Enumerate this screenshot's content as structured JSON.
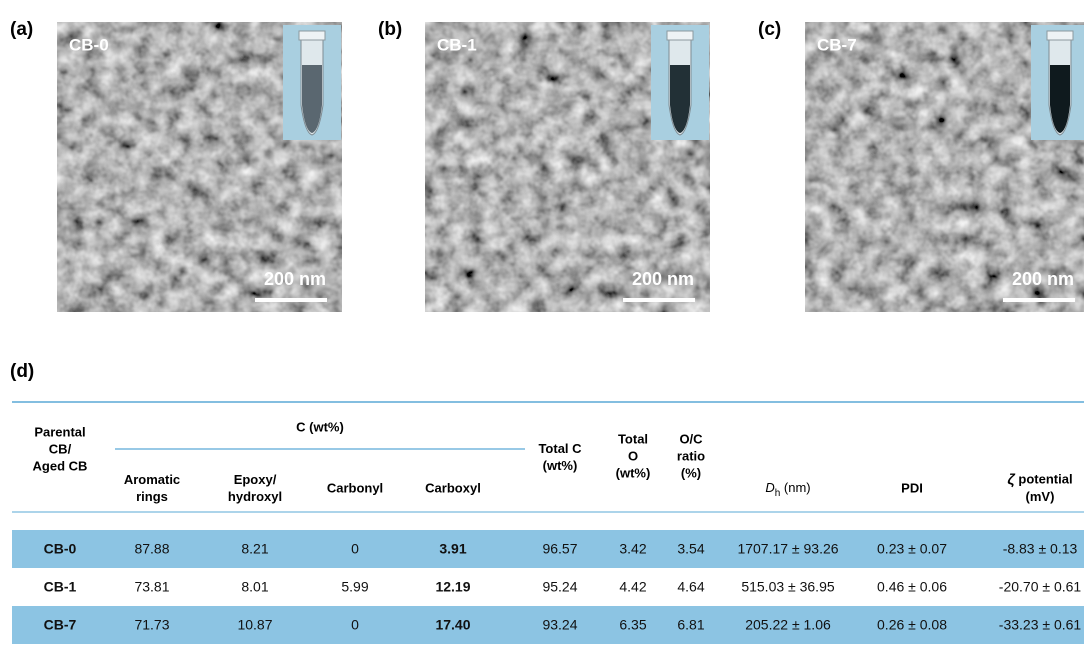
{
  "panels": [
    {
      "label": "(a)",
      "sample": "CB-0",
      "scale_bar": "200 nm"
    },
    {
      "label": "(b)",
      "sample": "CB-1",
      "scale_bar": "200 nm"
    },
    {
      "label": "(c)",
      "sample": "CB-7",
      "scale_bar": "200 nm"
    }
  ],
  "table": {
    "label": "(d)",
    "group_header": "C (wt%)",
    "headers": [
      [
        "Parental",
        "CB/",
        "Aged CB"
      ],
      [
        "Aromatic",
        "rings"
      ],
      [
        "Epoxy/",
        "hydroxyl"
      ],
      [
        "Carbonyl"
      ],
      [
        "Carboxyl"
      ],
      [
        "Total C",
        "(wt%)"
      ],
      [
        "Total",
        "O",
        "(wt%)"
      ],
      [
        "O/C",
        "ratio",
        "(%)"
      ],
      {
        "symbol": "D",
        "subscript": "h",
        "unit": "(nm)"
      },
      [
        "PDI"
      ],
      {
        "symbol": "ζ",
        "lines": [
          "potential",
          "(mV)"
        ]
      }
    ],
    "rows": [
      [
        "CB-0",
        "87.88",
        "8.21",
        "0",
        "3.91",
        "96.57",
        "3.42",
        "3.54",
        "1707.17 ± 93.26",
        "0.23 ± 0.07",
        "-8.83 ± 0.13"
      ],
      [
        "CB-1",
        "73.81",
        "8.01",
        "5.99",
        "12.19",
        "95.24",
        "4.42",
        "4.64",
        "515.03 ± 36.95",
        "0.46 ± 0.06",
        "-20.70 ± 0.61"
      ],
      [
        "CB-7",
        "71.73",
        "10.87",
        "0",
        "17.40",
        "93.24",
        "6.35",
        "6.81",
        "205.22 ± 1.06",
        "0.26 ± 0.08",
        "-33.23 ± 0.61"
      ]
    ]
  }
}
